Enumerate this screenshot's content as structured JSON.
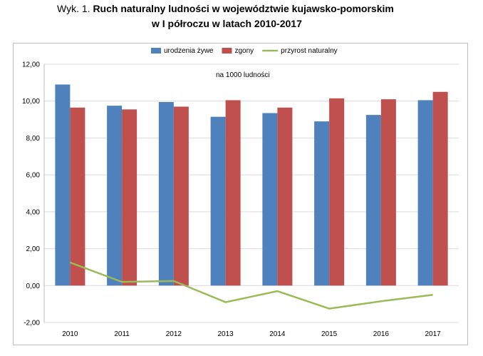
{
  "title": {
    "prefix": "Wyk. 1.",
    "line1": "Ruch naturalny ludności w województwie kujawsko-pomorskim",
    "line2": "w I półroczu w latach 2010-2017"
  },
  "chart_data": {
    "type": "bar",
    "annotation": "na 1000 ludności",
    "categories": [
      "2010",
      "2011",
      "2012",
      "2013",
      "2014",
      "2015",
      "2016",
      "2017"
    ],
    "series": [
      {
        "name": "urodzenia żywe",
        "type": "bar",
        "color": "#4f81bd",
        "values": [
          10.9,
          9.75,
          9.95,
          9.15,
          9.35,
          8.9,
          9.25,
          10.05
        ]
      },
      {
        "name": "zgony",
        "type": "bar",
        "color": "#c0504d",
        "values": [
          9.65,
          9.55,
          9.7,
          10.05,
          9.65,
          10.15,
          10.1,
          10.5
        ]
      },
      {
        "name": "przyrost naturalny",
        "type": "line",
        "color": "#9bbb59",
        "values": [
          1.25,
          0.2,
          0.25,
          -0.9,
          -0.3,
          -1.25,
          -0.85,
          -0.5
        ]
      }
    ],
    "ylim": [
      -2,
      12
    ],
    "yticks": [
      "-2,00",
      "0,00",
      "2,00",
      "4,00",
      "6,00",
      "8,00",
      "10,00",
      "12,00"
    ],
    "grid": true,
    "legend": "top"
  }
}
